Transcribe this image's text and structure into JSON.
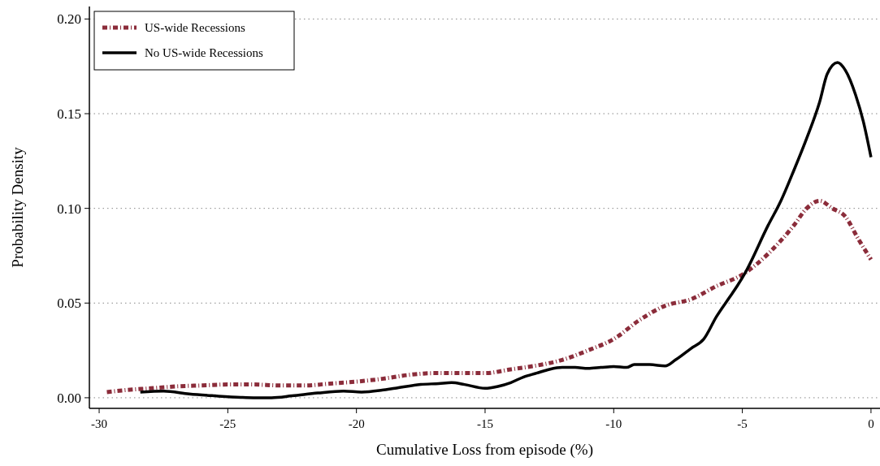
{
  "chart_data": {
    "type": "line",
    "xlabel": "Cumulative Loss from episode (%)",
    "ylabel": "Probability Density",
    "xlim": [
      -30.38,
      0.35
    ],
    "xticks": [
      -30,
      -25,
      -20,
      -15,
      -10,
      -5,
      0
    ],
    "ylim": [
      -0.0056,
      0.2066
    ],
    "yticks": [
      {
        "value": 0,
        "label": "0.00"
      },
      {
        "value": 0.05,
        "label": "0.05"
      },
      {
        "value": 0.1,
        "label": "0.10"
      },
      {
        "value": 0.15,
        "label": "0.15"
      },
      {
        "value": 0.2,
        "label": "0.20"
      }
    ],
    "grid": "y",
    "legend": "top left",
    "series": [
      {
        "name": "US-wide Recessions",
        "color": "#8b2c3a",
        "line_style": "dotted",
        "x": [
          -29.7,
          -29,
          -28,
          -27,
          -26,
          -25,
          -24,
          -23,
          -22,
          -21,
          -20,
          -19,
          -18,
          -17,
          -16,
          -15,
          -14,
          -13,
          -12,
          -11,
          -10,
          -9,
          -8,
          -7,
          -6,
          -5,
          -4,
          -3,
          -2.5,
          -2,
          -1.5,
          -1,
          -0.5,
          0
        ],
        "values": [
          0.003,
          0.004,
          0.005,
          0.006,
          0.0065,
          0.007,
          0.007,
          0.0065,
          0.0065,
          0.0075,
          0.0085,
          0.01,
          0.012,
          0.013,
          0.013,
          0.013,
          0.015,
          0.017,
          0.02,
          0.025,
          0.031,
          0.041,
          0.0486,
          0.052,
          0.059,
          0.065,
          0.076,
          0.091,
          0.1,
          0.104,
          0.1,
          0.0957,
          0.084,
          0.073
        ]
      },
      {
        "name": "No US-wide Recessions",
        "color": "#000000",
        "line_style": "solid",
        "x": [
          -28.4,
          -27.5,
          -26.5,
          -25.5,
          -24.5,
          -24,
          -23.3,
          -22.5,
          -21.5,
          -20.5,
          -19.8,
          -19,
          -18.5,
          -17.5,
          -16.8,
          -16.3,
          -15.8,
          -15,
          -14.5,
          -14,
          -13.5,
          -13,
          -12.5,
          -12,
          -11.5,
          -11,
          -10.5,
          -10,
          -9.5,
          -9.2,
          -8.6,
          -8,
          -7.6,
          -7,
          -6.5,
          -6,
          -5.5,
          -5.2,
          -4.9,
          -4,
          -3.5,
          -3,
          -2.5,
          -2,
          -1.7,
          -1.3,
          -1,
          -0.6,
          -0.3,
          0
        ],
        "values": [
          0.003,
          0.0035,
          0.002,
          0.001,
          0.0002,
          0.0,
          0.0,
          0.001,
          0.0025,
          0.0035,
          0.003,
          0.004,
          0.005,
          0.007,
          0.0075,
          0.008,
          0.007,
          0.005,
          0.006,
          0.008,
          0.011,
          0.013,
          0.015,
          0.016,
          0.016,
          0.0155,
          0.016,
          0.0165,
          0.016,
          0.0175,
          0.0175,
          0.0168,
          0.02,
          0.026,
          0.031,
          0.043,
          0.053,
          0.059,
          0.0657,
          0.091,
          0.104,
          0.12,
          0.137,
          0.156,
          0.171,
          0.177,
          0.173,
          0.16,
          0.146,
          0.127
        ]
      }
    ]
  }
}
